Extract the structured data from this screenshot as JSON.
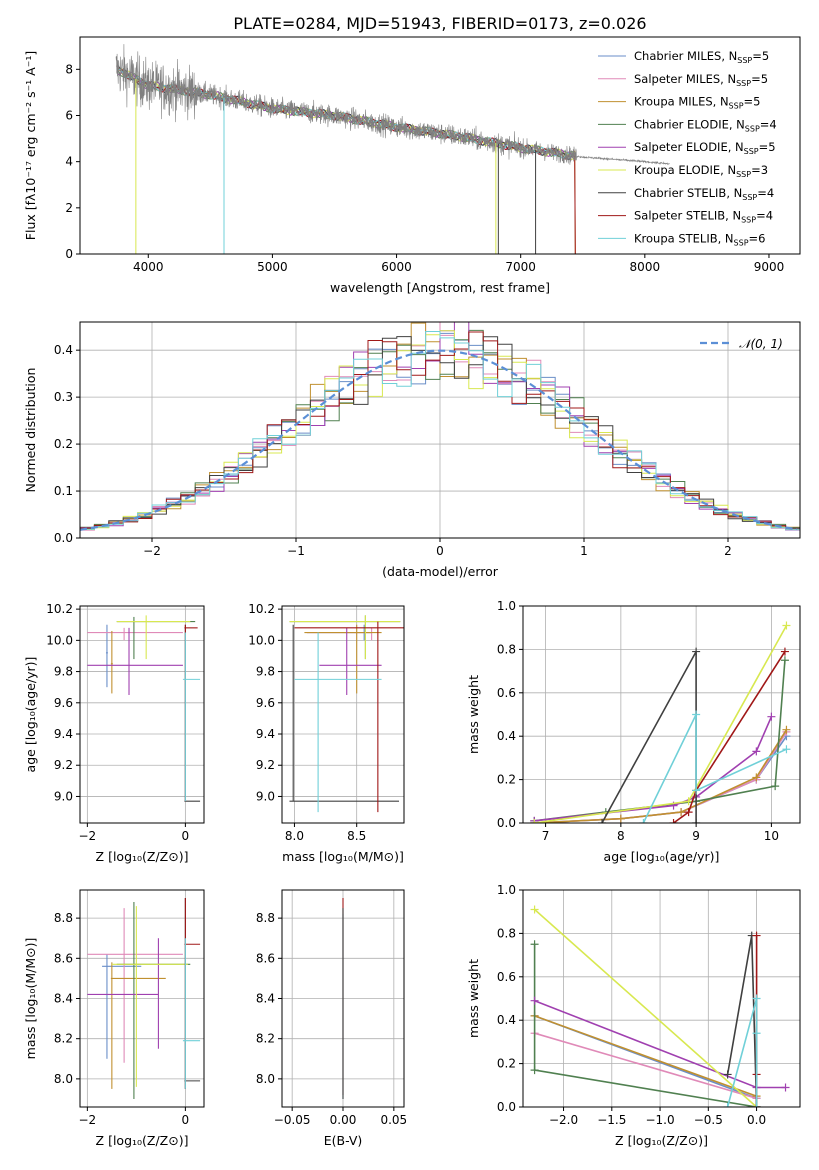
{
  "figure": {
    "title": "PLATE=0284, MJD=51943, FIBERID=0173, z=0.026"
  },
  "colors": {
    "cm": "#6a8ec8",
    "sm": "#e08ab8",
    "km": "#c09030",
    "ce": "#508050",
    "se": "#a040b0",
    "ke": "#d8e850",
    "cs": "#404040",
    "ss": "#a01818",
    "ks": "#70d0d8",
    "gauss": "#5b8fd6",
    "data": "#808080",
    "grid": "#b0b0b0"
  },
  "chart_data": [
    {
      "id": "spectrum",
      "type": "line",
      "title": "PLATE=0284, MJD=51943, FIBERID=0173, z=0.026",
      "xlabel": "wavelength [Angstrom, rest frame]",
      "ylabel": "Flux [fλ10⁻¹⁷ erg cm⁻² s⁻¹ A⁻¹]",
      "xlim": [
        3450,
        9250
      ],
      "ylim": [
        0,
        9.4
      ],
      "xticks": [
        4000,
        5000,
        6000,
        7000,
        8000,
        9000
      ],
      "yticks": [
        0,
        2,
        4,
        6,
        8
      ],
      "grid": false,
      "legend_position": "top-right",
      "data_range": [
        3740,
        7440
      ],
      "trend": [
        [
          3750,
          8.0
        ],
        [
          4000,
          7.3
        ],
        [
          4500,
          6.9
        ],
        [
          5000,
          6.3
        ],
        [
          5500,
          6.0
        ],
        [
          6000,
          5.5
        ],
        [
          6500,
          5.1
        ],
        [
          7000,
          4.6
        ],
        [
          7500,
          4.2
        ],
        [
          8000,
          4.0
        ],
        [
          8200,
          3.9
        ]
      ],
      "series": [
        {
          "name": "Chabrier MILES, N",
          "sub": "SSP",
          "suffix": "=5",
          "color_key": "cm"
        },
        {
          "name": "Salpeter MILES, N",
          "sub": "SSP",
          "suffix": "=5",
          "color_key": "sm"
        },
        {
          "name": "Kroupa MILES, N",
          "sub": "SSP",
          "suffix": "=5",
          "color_key": "km"
        },
        {
          "name": "Chabrier ELODIE, N",
          "sub": "SSP",
          "suffix": "=4",
          "color_key": "ce"
        },
        {
          "name": "Salpeter ELODIE, N",
          "sub": "SSP",
          "suffix": "=5",
          "color_key": "se"
        },
        {
          "name": "Kroupa ELODIE, N",
          "sub": "SSP",
          "suffix": "=3",
          "color_key": "ke"
        },
        {
          "name": "Chabrier STELIB, N",
          "sub": "SSP",
          "suffix": "=4",
          "color_key": "cs"
        },
        {
          "name": "Salpeter STELIB, N",
          "sub": "SSP",
          "suffix": "=4",
          "color_key": "ss"
        },
        {
          "name": "Kroupa STELIB, N",
          "sub": "SSP",
          "suffix": "=6",
          "color_key": "ks"
        }
      ]
    },
    {
      "id": "residuals",
      "type": "line",
      "xlabel": "(data-model)/error",
      "ylabel": "Normed distribution",
      "xlim": [
        -2.5,
        2.5
      ],
      "ylim": [
        0,
        0.46
      ],
      "xticks": [
        -2,
        -1,
        0,
        1,
        2
      ],
      "yticks": [
        0.0,
        0.1,
        0.2,
        0.3,
        0.4
      ],
      "grid": true,
      "legend_position": "top-right",
      "legend": "𝒩(0, 1)",
      "bin_width": 0.1,
      "series_keys": [
        "cm",
        "sm",
        "km",
        "ce",
        "se",
        "ke",
        "cs",
        "ss",
        "ks"
      ]
    },
    {
      "id": "age_vs_Z",
      "type": "scatter",
      "xlabel": "Z [log₁₀(Z/Z⊙)]",
      "ylabel": "age  [log₁₀(age/yr)]",
      "xlim": [
        -2.15,
        0.38
      ],
      "ylim": [
        8.83,
        10.22
      ],
      "xticks": [
        -2,
        0
      ],
      "yticks": [
        9.0,
        9.2,
        9.4,
        9.6,
        9.8,
        10.0,
        10.2
      ],
      "grid": true,
      "points": [
        {
          "k": "cm",
          "x": -1.6,
          "y": 9.92,
          "x0": -1.62,
          "x1": -1.58,
          "y0": 9.7,
          "y1": 10.1
        },
        {
          "k": "sm",
          "x": -1.25,
          "y": 10.05,
          "x0": -2.0,
          "x1": -0.05,
          "y0": 10.0,
          "y1": 10.08
        },
        {
          "k": "km",
          "x": -1.5,
          "y": 9.85,
          "x0": -1.52,
          "x1": -1.48,
          "y0": 9.66,
          "y1": 10.06
        },
        {
          "k": "ce",
          "x": -1.05,
          "y": 10.12,
          "x0": -1.4,
          "x1": 0.2,
          "y0": 9.88,
          "y1": 10.15
        },
        {
          "k": "se",
          "x": -1.15,
          "y": 9.84,
          "x0": -2.0,
          "x1": -0.05,
          "y0": 9.65,
          "y1": 10.08
        },
        {
          "k": "ke",
          "x": -0.8,
          "y": 10.12,
          "x0": -1.4,
          "x1": 0.1,
          "y0": 9.88,
          "y1": 10.16
        },
        {
          "k": "cs",
          "x": 0.0,
          "y": 8.97,
          "x0": -0.02,
          "x1": 0.3,
          "y0": 8.97,
          "y1": 10.1
        },
        {
          "k": "ss",
          "x": 0.0,
          "y": 10.08,
          "x0": -0.02,
          "x1": 0.25,
          "y0": 8.97,
          "y1": 10.1
        },
        {
          "k": "ks",
          "x": 0.0,
          "y": 9.75,
          "x0": -0.05,
          "x1": 0.3,
          "y0": 8.97,
          "y1": 10.05
        }
      ]
    },
    {
      "id": "age_vs_mass",
      "type": "scatter",
      "xlabel": "mass [log₁₀(M/M⊙)]",
      "ylabel": "",
      "xlim": [
        7.9,
        8.88
      ],
      "ylim": [
        8.83,
        10.22
      ],
      "xticks": [
        8.0,
        8.5
      ],
      "yticks": [
        9.0,
        9.2,
        9.4,
        9.6,
        9.8,
        10.0,
        10.2
      ],
      "grid": true,
      "points": [
        {
          "k": "cm",
          "x": 8.56,
          "y": 10.05,
          "x0": 8.1,
          "x1": 8.62,
          "y0": 10.0,
          "y1": 10.1
        },
        {
          "k": "sm",
          "x": 8.62,
          "y": 10.05,
          "x0": 8.1,
          "x1": 8.62,
          "y0": 10.0,
          "y1": 10.08
        },
        {
          "k": "km",
          "x": 8.5,
          "y": 10.05,
          "x0": 8.08,
          "x1": 8.7,
          "y0": 9.66,
          "y1": 10.1
        },
        {
          "k": "ce",
          "x": 8.57,
          "y": 10.12,
          "x0": 7.96,
          "x1": 8.85,
          "y0": 9.88,
          "y1": 10.16
        },
        {
          "k": "se",
          "x": 8.42,
          "y": 9.84,
          "x0": 8.2,
          "x1": 8.7,
          "y0": 9.65,
          "y1": 10.08
        },
        {
          "k": "ke",
          "x": 8.57,
          "y": 10.12,
          "x0": 7.96,
          "x1": 8.85,
          "y0": 9.88,
          "y1": 10.16
        },
        {
          "k": "cs",
          "x": 7.99,
          "y": 8.97,
          "x0": 7.96,
          "x1": 8.84,
          "y0": 8.97,
          "y1": 10.1
        },
        {
          "k": "ss",
          "x": 8.67,
          "y": 10.08,
          "x0": 8.0,
          "x1": 8.9,
          "y0": 8.9,
          "y1": 10.12
        },
        {
          "k": "ks",
          "x": 8.19,
          "y": 9.75,
          "x0": 8.0,
          "x1": 8.7,
          "y0": 8.9,
          "y1": 10.05
        }
      ]
    },
    {
      "id": "weight_vs_age",
      "type": "line",
      "xlabel": "age  [log₁₀(age/yr)]",
      "ylabel": "mass weight",
      "xlim": [
        6.7,
        10.38
      ],
      "ylim": [
        0,
        1.0
      ],
      "xticks": [
        7,
        8,
        9,
        10
      ],
      "yticks": [
        0.0,
        0.2,
        0.4,
        0.6,
        0.8,
        1.0
      ],
      "grid": true,
      "series": [
        {
          "k": "cm",
          "x": [
            6.85,
            8.0,
            8.8,
            9.8,
            10.2
          ],
          "y": [
            0.0,
            0.02,
            0.05,
            0.2,
            0.4
          ]
        },
        {
          "k": "sm",
          "x": [
            6.85,
            8.0,
            8.8,
            9.8,
            10.2
          ],
          "y": [
            0.0,
            0.02,
            0.05,
            0.2,
            0.42
          ]
        },
        {
          "k": "km",
          "x": [
            6.85,
            8.0,
            8.8,
            9.8,
            10.2
          ],
          "y": [
            0.0,
            0.02,
            0.05,
            0.21,
            0.43
          ]
        },
        {
          "k": "ce",
          "x": [
            6.85,
            7.8,
            9.0,
            10.05,
            10.18
          ],
          "y": [
            0.01,
            0.05,
            0.1,
            0.17,
            0.75
          ]
        },
        {
          "k": "se",
          "x": [
            6.85,
            8.7,
            9.0,
            9.8,
            10.0
          ],
          "y": [
            0.01,
            0.08,
            0.12,
            0.33,
            0.49
          ]
        },
        {
          "k": "ke",
          "x": [
            6.85,
            8.9,
            10.2
          ],
          "y": [
            0.0,
            0.1,
            0.91
          ]
        },
        {
          "k": "cs",
          "x": [
            7.75,
            9.0,
            9.0
          ],
          "y": [
            0.0,
            0.79,
            0.0
          ]
        },
        {
          "k": "ss",
          "x": [
            8.7,
            8.9,
            9.0,
            10.18
          ],
          "y": [
            0.0,
            0.05,
            0.15,
            0.79
          ]
        },
        {
          "k": "ks",
          "x": [
            8.3,
            9.0,
            9.0,
            10.2
          ],
          "y": [
            0.0,
            0.5,
            0.15,
            0.34
          ]
        }
      ]
    },
    {
      "id": "mass_vs_Z",
      "type": "scatter",
      "xlabel": "Z [log₁₀(Z/Z⊙)]",
      "ylabel": "mass [log₁₀(M/M⊙)]",
      "xlim": [
        -2.15,
        0.38
      ],
      "ylim": [
        7.86,
        8.94
      ],
      "xticks": [
        -2,
        0
      ],
      "yticks": [
        8.0,
        8.2,
        8.4,
        8.6,
        8.8
      ],
      "grid": true,
      "points": [
        {
          "k": "cm",
          "x": -1.6,
          "y": 8.56,
          "x0": -1.7,
          "x1": -0.9,
          "y0": 8.1,
          "y1": 8.62
        },
        {
          "k": "sm",
          "x": -1.25,
          "y": 8.62,
          "x0": -2.0,
          "x1": -0.05,
          "y0": 8.08,
          "y1": 8.85
        },
        {
          "k": "km",
          "x": -1.5,
          "y": 8.5,
          "x0": -1.52,
          "x1": -0.4,
          "y0": 7.95,
          "y1": 8.58
        },
        {
          "k": "ce",
          "x": -1.05,
          "y": 8.57,
          "x0": -1.4,
          "x1": 0.1,
          "y0": 7.9,
          "y1": 8.88
        },
        {
          "k": "se",
          "x": -0.55,
          "y": 8.42,
          "x0": -2.0,
          "x1": -0.55,
          "y0": 8.15,
          "y1": 8.7
        },
        {
          "k": "ke",
          "x": -1.0,
          "y": 8.57,
          "x0": -1.5,
          "x1": 0.05,
          "y0": 7.96,
          "y1": 8.86
        },
        {
          "k": "cs",
          "x": 0.0,
          "y": 7.99,
          "x0": -0.02,
          "x1": 0.3,
          "y0": 7.95,
          "y1": 8.9
        },
        {
          "k": "ss",
          "x": 0.0,
          "y": 8.67,
          "x0": -0.02,
          "x1": 0.3,
          "y0": 7.95,
          "y1": 8.9
        },
        {
          "k": "ks",
          "x": 0.0,
          "y": 8.19,
          "x0": -0.05,
          "x1": 0.3,
          "y0": 7.95,
          "y1": 8.7
        }
      ]
    },
    {
      "id": "mass_vs_ebv",
      "type": "scatter",
      "xlabel": "E(B-V)",
      "ylabel": "",
      "xlim": [
        -0.06,
        0.06
      ],
      "ylim": [
        7.86,
        8.94
      ],
      "xticks": [
        -0.05,
        0.0,
        0.05
      ],
      "yticks": [
        8.0,
        8.2,
        8.4,
        8.6,
        8.8
      ],
      "grid": true,
      "points": [
        {
          "k": "ss",
          "x": 0.0,
          "y": 8.67,
          "x0": 0.0,
          "x1": 0.0,
          "y0": 7.92,
          "y1": 8.9
        },
        {
          "k": "ks",
          "x": 0.0,
          "y": 8.4,
          "x0": 0.0,
          "x1": 0.0,
          "y0": 7.9,
          "y1": 8.82
        },
        {
          "k": "cs",
          "x": 0.0,
          "y": 8.0,
          "x0": 0.0,
          "x1": 0.0,
          "y0": 7.9,
          "y1": 8.85
        }
      ]
    },
    {
      "id": "weight_vs_Z",
      "type": "line",
      "xlabel": "Z [log₁₀(Z/Z⊙)]",
      "ylabel": "mass weight",
      "xlim": [
        -2.42,
        0.45
      ],
      "ylim": [
        0,
        1.0
      ],
      "xticks": [
        -2.0,
        -1.5,
        -1.0,
        -0.5,
        0.0
      ],
      "yticks": [
        0.0,
        0.2,
        0.4,
        0.6,
        0.8,
        1.0
      ],
      "grid": true,
      "series": [
        {
          "k": "cm",
          "x": [
            -2.3,
            0.0,
            0.0
          ],
          "y": [
            0.42,
            0.04,
            0.0
          ]
        },
        {
          "k": "sm",
          "x": [
            -2.3,
            0.0,
            0.0
          ],
          "y": [
            0.34,
            0.04,
            0.0
          ]
        },
        {
          "k": "km",
          "x": [
            -2.3,
            0.0,
            0.0
          ],
          "y": [
            0.42,
            0.05,
            0.0
          ]
        },
        {
          "k": "ce",
          "x": [
            -2.3,
            -2.3,
            0.0
          ],
          "y": [
            0.75,
            0.17,
            0.0
          ]
        },
        {
          "k": "se",
          "x": [
            -2.3,
            0.0,
            0.3
          ],
          "y": [
            0.49,
            0.09,
            0.09
          ]
        },
        {
          "k": "ke",
          "x": [
            -2.3,
            0.0
          ],
          "y": [
            0.91,
            0.0
          ]
        },
        {
          "k": "cs",
          "x": [
            -0.3,
            -0.05,
            0.0
          ],
          "y": [
            0.15,
            0.79,
            0.0
          ]
        },
        {
          "k": "ss",
          "x": [
            0.0,
            0.0,
            0.0
          ],
          "y": [
            0.79,
            0.15,
            0.0
          ]
        },
        {
          "k": "ks",
          "x": [
            -0.3,
            0.0,
            0.0,
            0.0
          ],
          "y": [
            0.0,
            0.5,
            0.34,
            0.0
          ]
        }
      ]
    }
  ]
}
